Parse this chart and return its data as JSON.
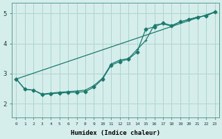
{
  "title": "",
  "xlabel": "Humidex (Indice chaleur)",
  "ylabel": "",
  "bg_color": "#d5eeeb",
  "grid_color": "#aed4d0",
  "line_color": "#1a7a6e",
  "xlim": [
    -0.5,
    23.5
  ],
  "ylim": [
    1.55,
    5.35
  ],
  "xticks": [
    0,
    1,
    2,
    3,
    4,
    5,
    6,
    7,
    8,
    9,
    10,
    11,
    12,
    13,
    14,
    15,
    16,
    17,
    18,
    19,
    20,
    21,
    22,
    23
  ],
  "yticks": [
    2,
    3,
    4,
    5
  ],
  "line1_x": [
    0,
    1,
    2,
    3,
    4,
    5,
    6,
    7,
    8,
    9,
    10,
    11,
    12,
    13,
    14,
    15,
    16,
    17,
    18,
    19,
    20,
    21,
    22,
    23
  ],
  "line1_y": [
    2.82,
    2.48,
    2.45,
    2.3,
    2.33,
    2.35,
    2.37,
    2.38,
    2.4,
    2.55,
    2.82,
    3.28,
    3.4,
    3.48,
    3.72,
    4.48,
    4.55,
    4.68,
    4.6,
    4.72,
    4.8,
    4.88,
    4.92,
    5.05
  ],
  "line2_x": [
    0,
    1,
    2,
    3,
    4,
    5,
    6,
    7,
    8,
    9,
    10,
    11,
    12,
    13,
    14,
    15,
    16,
    17,
    18,
    19,
    20,
    21,
    22,
    23
  ],
  "line2_y": [
    2.82,
    2.48,
    2.45,
    2.32,
    2.35,
    2.38,
    2.4,
    2.42,
    2.45,
    2.6,
    2.85,
    3.32,
    3.45,
    3.5,
    3.8,
    4.1,
    4.62,
    4.65,
    4.58,
    4.72,
    4.8,
    4.88,
    4.92,
    5.05
  ],
  "line3_x": [
    0,
    23
  ],
  "line3_y": [
    2.82,
    5.05
  ]
}
